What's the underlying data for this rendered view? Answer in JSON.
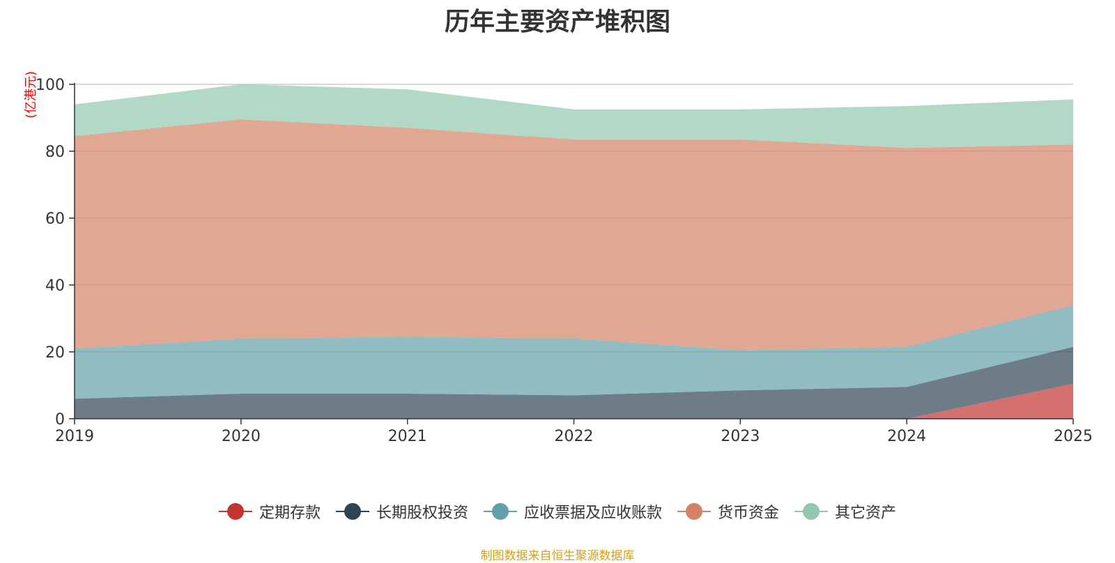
{
  "chart_data": {
    "type": "area",
    "title": "历年主要资产堆积图",
    "ylabel": "(亿港元)",
    "xlabel": "",
    "x": [
      "2019",
      "2020",
      "2021",
      "2022",
      "2023",
      "2024",
      "2025"
    ],
    "ylim": [
      0,
      100
    ],
    "yticks": [
      0,
      20,
      40,
      60,
      80,
      100
    ],
    "stacked": true,
    "grid": true,
    "legend_position": "bottom",
    "series": [
      {
        "name": "定期存款",
        "color": "#c23531",
        "values": [
          0,
          0,
          0,
          0,
          0,
          0,
          10.5
        ]
      },
      {
        "name": "长期股权投资",
        "color": "#2f4554",
        "values": [
          6.0,
          7.5,
          7.5,
          7.0,
          8.5,
          9.5,
          11.0
        ]
      },
      {
        "name": "应收票据及应收账款",
        "color": "#61a0a8",
        "values": [
          15.0,
          16.5,
          17.0,
          17.0,
          12.0,
          12.0,
          12.5
        ]
      },
      {
        "name": "货币资金",
        "color": "#d48265",
        "values": [
          63.5,
          65.5,
          62.5,
          59.5,
          63.0,
          59.5,
          48.0
        ]
      },
      {
        "name": "其它资产",
        "color": "#91c7ae",
        "values": [
          9.5,
          10.5,
          11.5,
          9.0,
          9.0,
          12.5,
          13.5
        ]
      }
    ]
  },
  "source_note": "制图数据来自恒生聚源数据库"
}
